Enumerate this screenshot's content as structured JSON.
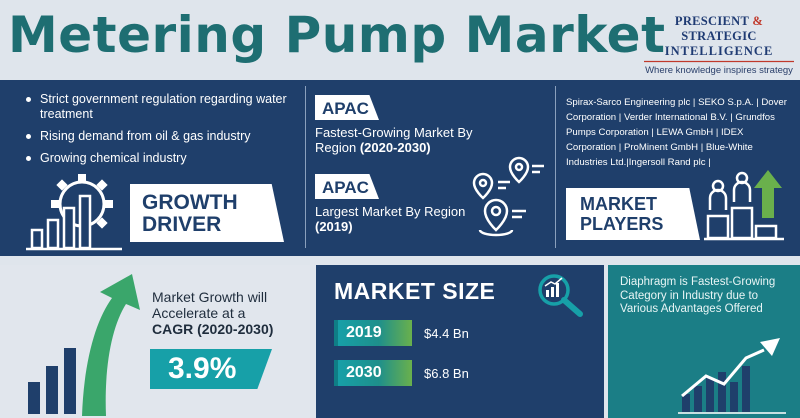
{
  "header": {
    "title": "Metering Pump Market",
    "brand": {
      "line1_part1": "PRESCIENT",
      "line1_amp": "&",
      "line1_part2": "STRATEGIC",
      "line2": "INTELLIGENCE",
      "tagline": "Where knowledge inspires strategy"
    }
  },
  "growth_driver": {
    "points": [
      "Strict government regulation regarding water treatment",
      "Rising demand from oil & gas industry",
      "Growing chemical industry"
    ],
    "label_line1": "GROWTH",
    "label_line2": "DRIVER"
  },
  "regions": {
    "fastest": {
      "region": "APAC",
      "text": "Fastest-Growing Market By Region ",
      "period": "(2020-2030)"
    },
    "largest": {
      "region": "APAC",
      "text": "Largest Market By Region ",
      "period": "(2019)"
    }
  },
  "market_players": {
    "list": "Spirax-Sarco Engineering plc | SEKO S.p.A. | Dover Corporation | Verder International B.V. | Grundfos Pumps Corporation | LEWA GmbH | IDEX Corporation | ProMinent GmbH | Blue-White Industries Ltd.|Ingersoll Rand plc |",
    "label_line1": "MARKET",
    "label_line2": "PLAYERS"
  },
  "cagr": {
    "text": "Market Growth will Accelerate at a",
    "label": "CAGR (2020-2030)",
    "value": "3.9%"
  },
  "market_size": {
    "title": "MARKET SIZE",
    "rows": [
      {
        "year": "2019",
        "value": "$4.4 Bn"
      },
      {
        "year": "2030",
        "value": "$6.8 Bn"
      }
    ]
  },
  "category": {
    "text": "Diaphragm is Fastest-Growing Category in Industry due to Various Advantages Offered"
  },
  "colors": {
    "navy": "#1f3f6b",
    "teal": "#1b7e86",
    "accent_teal": "#17a0a8",
    "green": "#6ab04c",
    "title": "#1e6e72"
  }
}
